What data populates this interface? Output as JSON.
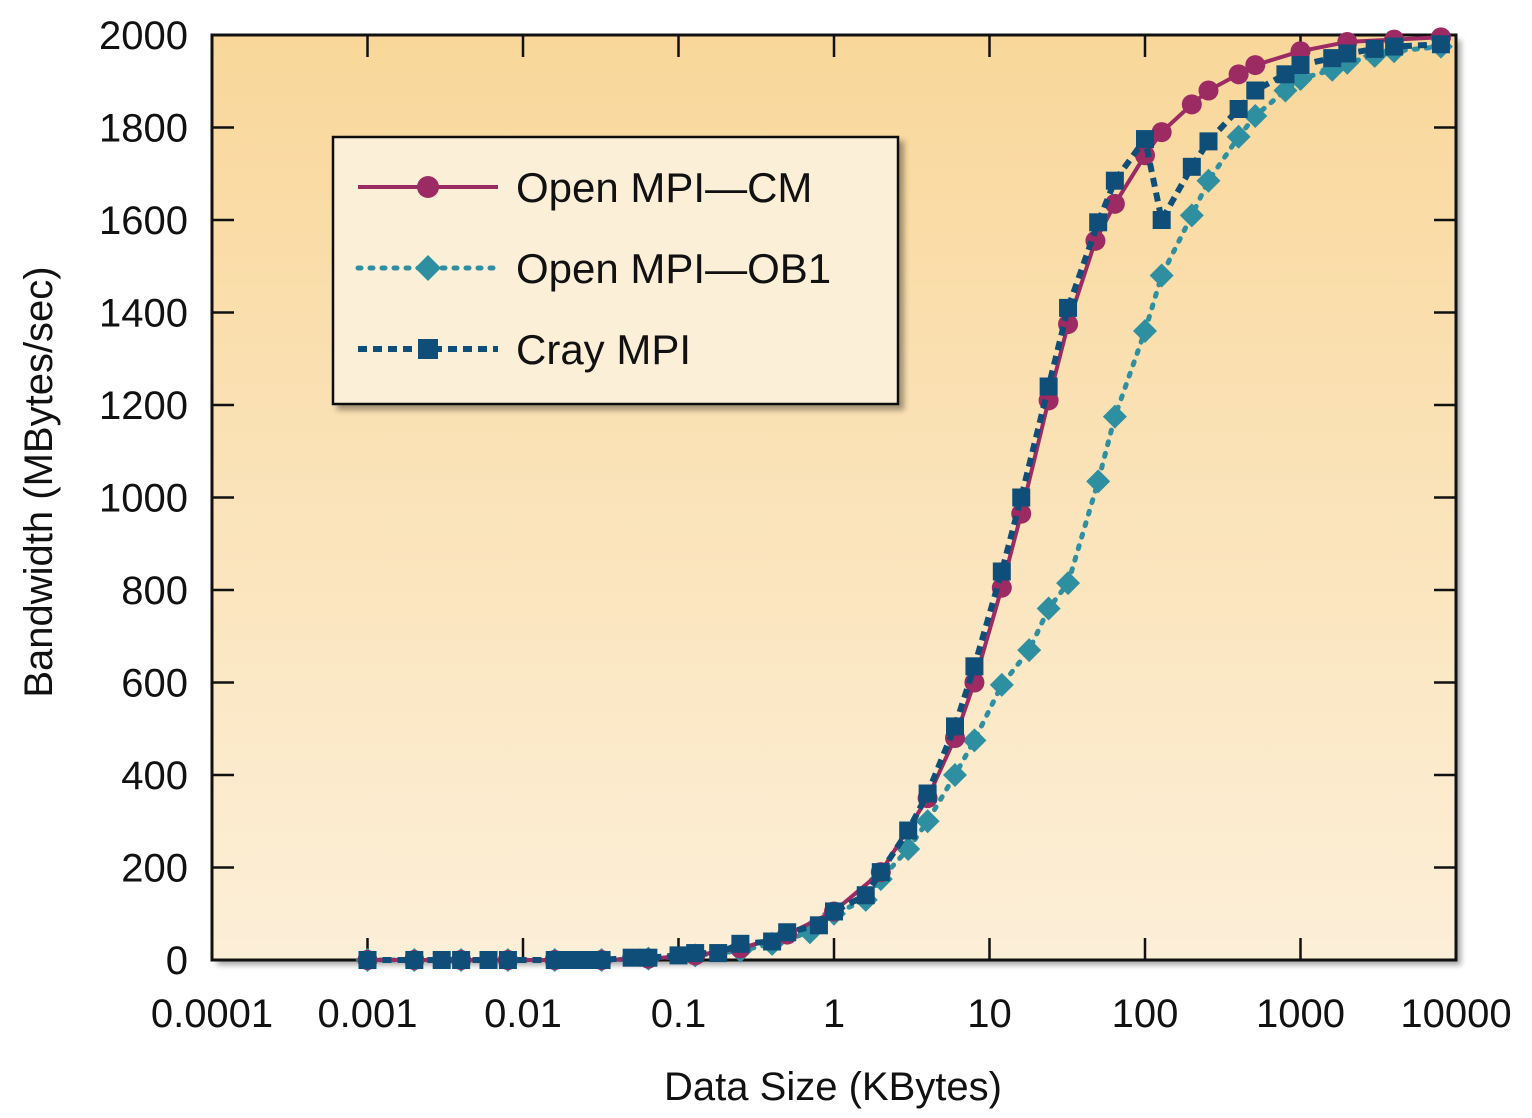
{
  "chart_data": {
    "type": "line",
    "x_scale": "log",
    "xlabel": "Data Size (KBytes)",
    "ylabel": "Bandwidth (MBytes/sec)",
    "xlim": [
      0.0001,
      10000
    ],
    "ylim": [
      0,
      2000
    ],
    "x_tick_labels": [
      "0.0001",
      "0.001",
      "0.01",
      "0.1",
      "1",
      "10",
      "100",
      "1000",
      "10000"
    ],
    "y_tick_labels": [
      "0",
      "200",
      "400",
      "600",
      "800",
      "1000",
      "1200",
      "1400",
      "1600",
      "1800",
      "2000"
    ],
    "x_ticks": [
      0.0001,
      0.001,
      0.01,
      0.1,
      1,
      10,
      100,
      1000,
      10000
    ],
    "y_ticks": [
      0,
      200,
      400,
      600,
      800,
      1000,
      1200,
      1400,
      1600,
      1800,
      2000
    ],
    "grid": false,
    "legend_position": "top-left",
    "background_gradient": [
      "#f9d79a",
      "#fcefd8"
    ],
    "series": [
      {
        "name": "Open MPI—CM",
        "color": "#9c2a63",
        "line_style": "solid",
        "marker": "circle",
        "x": [
          0.001,
          0.002,
          0.004,
          0.008,
          0.016,
          0.032,
          0.064,
          0.128,
          0.25,
          0.5,
          1,
          2,
          4,
          6,
          8,
          12,
          16,
          24,
          32,
          48,
          64,
          100,
          128,
          200,
          256,
          400,
          512,
          1000,
          2000,
          4000,
          8000
        ],
        "y": [
          0,
          0,
          0,
          0,
          0,
          0,
          3,
          10,
          25,
          55,
          105,
          190,
          350,
          480,
          600,
          805,
          965,
          1210,
          1375,
          1555,
          1635,
          1740,
          1790,
          1850,
          1880,
          1915,
          1935,
          1965,
          1985,
          1990,
          1995
        ]
      },
      {
        "name": "Open MPI—OB1",
        "color": "#2e8fa0",
        "line_style": "dotted",
        "marker": "diamond",
        "x": [
          0.001,
          0.002,
          0.004,
          0.008,
          0.016,
          0.032,
          0.064,
          0.128,
          0.25,
          0.4,
          0.7,
          1,
          1.6,
          2,
          3,
          4,
          6,
          8,
          12,
          18,
          24,
          32,
          50,
          64,
          100,
          128,
          200,
          256,
          400,
          512,
          800,
          1000,
          1600,
          2000,
          3000,
          4000,
          8000
        ],
        "y": [
          0,
          0,
          0,
          0,
          0,
          0,
          3,
          10,
          20,
          35,
          60,
          100,
          130,
          175,
          240,
          300,
          400,
          475,
          595,
          670,
          760,
          815,
          1035,
          1175,
          1360,
          1480,
          1610,
          1685,
          1780,
          1825,
          1880,
          1905,
          1925,
          1940,
          1955,
          1965,
          1975
        ]
      },
      {
        "name": "Cray MPI",
        "color": "#0e4e78",
        "line_style": "dashed",
        "marker": "square",
        "x": [
          0.001,
          0.002,
          0.003,
          0.004,
          0.006,
          0.008,
          0.016,
          0.02,
          0.025,
          0.032,
          0.05,
          0.064,
          0.1,
          0.128,
          0.18,
          0.25,
          0.4,
          0.5,
          0.8,
          1,
          1.6,
          2,
          3,
          4,
          6,
          8,
          12,
          16,
          24,
          32,
          50,
          64,
          100,
          128,
          200,
          256,
          400,
          512,
          800,
          1000,
          1600,
          2000,
          3000,
          4000,
          8000
        ],
        "y": [
          0,
          0,
          0,
          0,
          0,
          0,
          0,
          0,
          0,
          0,
          5,
          5,
          10,
          15,
          15,
          35,
          40,
          60,
          75,
          105,
          140,
          190,
          280,
          360,
          505,
          635,
          840,
          1000,
          1240,
          1410,
          1595,
          1685,
          1775,
          1600,
          1715,
          1770,
          1840,
          1880,
          1915,
          1935,
          1950,
          1960,
          1970,
          1975,
          1980
        ]
      }
    ]
  }
}
